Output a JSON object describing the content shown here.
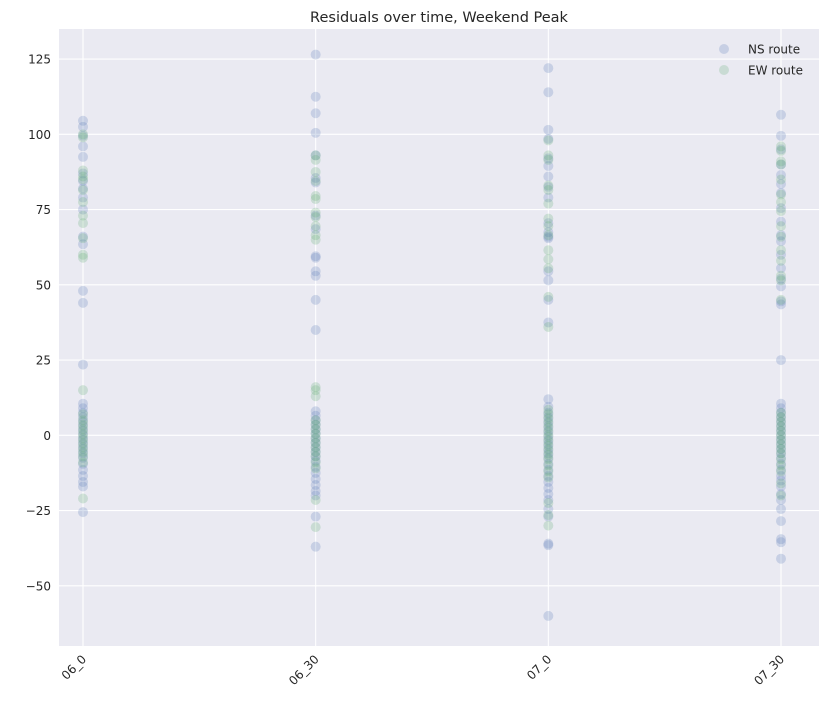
{
  "chart_data": {
    "type": "scatter",
    "title": "Residuals over time, Weekend Peak",
    "xlabel": "",
    "ylabel": "",
    "categories": [
      "06_0",
      "06_30",
      "07_0",
      "07_30"
    ],
    "ylim": [
      -70,
      135
    ],
    "yticks": [
      -50,
      -25,
      0,
      25,
      50,
      75,
      100,
      125
    ],
    "ytick_labels": [
      "−50",
      "−25",
      "0",
      "25",
      "50",
      "75",
      "100",
      "125"
    ],
    "grid": true,
    "legend_position": "top-right",
    "series": [
      {
        "name": "NS route",
        "color": "#4C72B0",
        "points": [
          [
            "06_0",
            104.5
          ],
          [
            "06_0",
            102.5
          ],
          [
            "06_0",
            99.5
          ],
          [
            "06_0",
            96
          ],
          [
            "06_0",
            92.5
          ],
          [
            "06_0",
            87
          ],
          [
            "06_0",
            84.5
          ],
          [
            "06_0",
            82
          ],
          [
            "06_0",
            79
          ],
          [
            "06_0",
            75
          ],
          [
            "06_0",
            66
          ],
          [
            "06_0",
            63.5
          ],
          [
            "06_0",
            48
          ],
          [
            "06_0",
            44
          ],
          [
            "06_0",
            23.5
          ],
          [
            "06_0",
            10.5
          ],
          [
            "06_0",
            9
          ],
          [
            "06_0",
            7.5
          ],
          [
            "06_0",
            6
          ],
          [
            "06_0",
            4.5
          ],
          [
            "06_0",
            3
          ],
          [
            "06_0",
            1.5
          ],
          [
            "06_0",
            0
          ],
          [
            "06_0",
            -1.5
          ],
          [
            "06_0",
            -3
          ],
          [
            "06_0",
            -4.5
          ],
          [
            "06_0",
            -6
          ],
          [
            "06_0",
            -7.5
          ],
          [
            "06_0",
            -9.5
          ],
          [
            "06_0",
            -11.5
          ],
          [
            "06_0",
            -13.5
          ],
          [
            "06_0",
            -15.5
          ],
          [
            "06_0",
            -17
          ],
          [
            "06_0",
            -25.5
          ],
          [
            "06_30",
            126.5
          ],
          [
            "06_30",
            112.5
          ],
          [
            "06_30",
            107
          ],
          [
            "06_30",
            100.5
          ],
          [
            "06_30",
            93
          ],
          [
            "06_30",
            85.5
          ],
          [
            "06_30",
            84
          ],
          [
            "06_30",
            73
          ],
          [
            "06_30",
            68.5
          ],
          [
            "06_30",
            59.5
          ],
          [
            "06_30",
            59
          ],
          [
            "06_30",
            54.5
          ],
          [
            "06_30",
            53
          ],
          [
            "06_30",
            45
          ],
          [
            "06_30",
            35
          ],
          [
            "06_30",
            8
          ],
          [
            "06_30",
            6.5
          ],
          [
            "06_30",
            5
          ],
          [
            "06_30",
            3.5
          ],
          [
            "06_30",
            2
          ],
          [
            "06_30",
            0.5
          ],
          [
            "06_30",
            -1
          ],
          [
            "06_30",
            -2.5
          ],
          [
            "06_30",
            -4
          ],
          [
            "06_30",
            -5.5
          ],
          [
            "06_30",
            -7
          ],
          [
            "06_30",
            -8.5
          ],
          [
            "06_30",
            -10.5
          ],
          [
            "06_30",
            -12.5
          ],
          [
            "06_30",
            -14.5
          ],
          [
            "06_30",
            -16.5
          ],
          [
            "06_30",
            -18.5
          ],
          [
            "06_30",
            -20
          ],
          [
            "06_30",
            -27
          ],
          [
            "06_30",
            -37
          ],
          [
            "07_0",
            122
          ],
          [
            "07_0",
            114
          ],
          [
            "07_0",
            101.5
          ],
          [
            "07_0",
            98.5
          ],
          [
            "07_0",
            92
          ],
          [
            "07_0",
            89.5
          ],
          [
            "07_0",
            86
          ],
          [
            "07_0",
            82.5
          ],
          [
            "07_0",
            79
          ],
          [
            "07_0",
            70.5
          ],
          [
            "07_0",
            67.5
          ],
          [
            "07_0",
            66
          ],
          [
            "07_0",
            65.5
          ],
          [
            "07_0",
            54.5
          ],
          [
            "07_0",
            51.5
          ],
          [
            "07_0",
            45
          ],
          [
            "07_0",
            37.5
          ],
          [
            "07_0",
            12
          ],
          [
            "07_0",
            9.5
          ],
          [
            "07_0",
            7.5
          ],
          [
            "07_0",
            6
          ],
          [
            "07_0",
            4.5
          ],
          [
            "07_0",
            3
          ],
          [
            "07_0",
            1.5
          ],
          [
            "07_0",
            0
          ],
          [
            "07_0",
            -1.5
          ],
          [
            "07_0",
            -3
          ],
          [
            "07_0",
            -4.5
          ],
          [
            "07_0",
            -6
          ],
          [
            "07_0",
            -7.5
          ],
          [
            "07_0",
            -9.5
          ],
          [
            "07_0",
            -11.5
          ],
          [
            "07_0",
            -13.5
          ],
          [
            "07_0",
            -15.5
          ],
          [
            "07_0",
            -17.5
          ],
          [
            "07_0",
            -19.5
          ],
          [
            "07_0",
            -21.5
          ],
          [
            "07_0",
            -24.5
          ],
          [
            "07_0",
            -27
          ],
          [
            "07_0",
            -36
          ],
          [
            "07_0",
            -36.5
          ],
          [
            "07_0",
            -60
          ],
          [
            "07_30",
            106.5
          ],
          [
            "07_30",
            99.5
          ],
          [
            "07_30",
            95
          ],
          [
            "07_30",
            90
          ],
          [
            "07_30",
            86.5
          ],
          [
            "07_30",
            83.5
          ],
          [
            "07_30",
            80.5
          ],
          [
            "07_30",
            75.5
          ],
          [
            "07_30",
            71
          ],
          [
            "07_30",
            66.5
          ],
          [
            "07_30",
            64.5
          ],
          [
            "07_30",
            60
          ],
          [
            "07_30",
            55.5
          ],
          [
            "07_30",
            52
          ],
          [
            "07_30",
            49.5
          ],
          [
            "07_30",
            44.5
          ],
          [
            "07_30",
            43.5
          ],
          [
            "07_30",
            25
          ],
          [
            "07_30",
            10.5
          ],
          [
            "07_30",
            9
          ],
          [
            "07_30",
            7.5
          ],
          [
            "07_30",
            6
          ],
          [
            "07_30",
            4.5
          ],
          [
            "07_30",
            3
          ],
          [
            "07_30",
            1.5
          ],
          [
            "07_30",
            0
          ],
          [
            "07_30",
            -1.5
          ],
          [
            "07_30",
            -3
          ],
          [
            "07_30",
            -4.5
          ],
          [
            "07_30",
            -6
          ],
          [
            "07_30",
            -7.5
          ],
          [
            "07_30",
            -9.5
          ],
          [
            "07_30",
            -11.5
          ],
          [
            "07_30",
            -13.5
          ],
          [
            "07_30",
            -15
          ],
          [
            "07_30",
            -17
          ],
          [
            "07_30",
            -19.5
          ],
          [
            "07_30",
            -21.5
          ],
          [
            "07_30",
            -24.5
          ],
          [
            "07_30",
            -28.5
          ],
          [
            "07_30",
            -34.5
          ],
          [
            "07_30",
            -35.5
          ],
          [
            "07_30",
            -41
          ]
        ]
      },
      {
        "name": "EW route",
        "color": "#55A868",
        "points": [
          [
            "06_0",
            100
          ],
          [
            "06_0",
            99
          ],
          [
            "06_0",
            88
          ],
          [
            "06_0",
            86
          ],
          [
            "06_0",
            85
          ],
          [
            "06_0",
            81.5
          ],
          [
            "06_0",
            77.5
          ],
          [
            "06_0",
            73
          ],
          [
            "06_0",
            70.5
          ],
          [
            "06_0",
            65.5
          ],
          [
            "06_0",
            60
          ],
          [
            "06_0",
            59
          ],
          [
            "06_0",
            15
          ],
          [
            "06_0",
            7
          ],
          [
            "06_0",
            5
          ],
          [
            "06_0",
            3.5
          ],
          [
            "06_0",
            2
          ],
          [
            "06_0",
            0.5
          ],
          [
            "06_0",
            -1
          ],
          [
            "06_0",
            -2.5
          ],
          [
            "06_0",
            -4
          ],
          [
            "06_0",
            -5.5
          ],
          [
            "06_0",
            -7
          ],
          [
            "06_0",
            -9
          ],
          [
            "06_0",
            -21
          ],
          [
            "06_30",
            93
          ],
          [
            "06_30",
            91.5
          ],
          [
            "06_30",
            87.5
          ],
          [
            "06_30",
            84.5
          ],
          [
            "06_30",
            79.5
          ],
          [
            "06_30",
            78.5
          ],
          [
            "06_30",
            74
          ],
          [
            "06_30",
            72.5
          ],
          [
            "06_30",
            69.5
          ],
          [
            "06_30",
            66.5
          ],
          [
            "06_30",
            65
          ],
          [
            "06_30",
            16
          ],
          [
            "06_30",
            15
          ],
          [
            "06_30",
            13
          ],
          [
            "06_30",
            5
          ],
          [
            "06_30",
            3.5
          ],
          [
            "06_30",
            2
          ],
          [
            "06_30",
            0.5
          ],
          [
            "06_30",
            -1
          ],
          [
            "06_30",
            -2.5
          ],
          [
            "06_30",
            -4
          ],
          [
            "06_30",
            -5.5
          ],
          [
            "06_30",
            -7
          ],
          [
            "06_30",
            -9
          ],
          [
            "06_30",
            -11
          ],
          [
            "06_30",
            -21.5
          ],
          [
            "06_30",
            -30.5
          ],
          [
            "07_0",
            98
          ],
          [
            "07_0",
            93
          ],
          [
            "07_0",
            91.5
          ],
          [
            "07_0",
            83
          ],
          [
            "07_0",
            81.5
          ],
          [
            "07_0",
            77
          ],
          [
            "07_0",
            72
          ],
          [
            "07_0",
            69.5
          ],
          [
            "07_0",
            66.5
          ],
          [
            "07_0",
            61.5
          ],
          [
            "07_0",
            58.5
          ],
          [
            "07_0",
            55.5
          ],
          [
            "07_0",
            46
          ],
          [
            "07_0",
            36
          ],
          [
            "07_0",
            8.5
          ],
          [
            "07_0",
            7
          ],
          [
            "07_0",
            5.5
          ],
          [
            "07_0",
            4
          ],
          [
            "07_0",
            2.5
          ],
          [
            "07_0",
            1
          ],
          [
            "07_0",
            -0.5
          ],
          [
            "07_0",
            -2
          ],
          [
            "07_0",
            -3.5
          ],
          [
            "07_0",
            -5
          ],
          [
            "07_0",
            -6.5
          ],
          [
            "07_0",
            -8
          ],
          [
            "07_0",
            -10
          ],
          [
            "07_0",
            -12
          ],
          [
            "07_0",
            -14
          ],
          [
            "07_0",
            -22.5
          ],
          [
            "07_0",
            -26.5
          ],
          [
            "07_0",
            -30
          ],
          [
            "07_30",
            96
          ],
          [
            "07_30",
            94.5
          ],
          [
            "07_30",
            91
          ],
          [
            "07_30",
            90
          ],
          [
            "07_30",
            85
          ],
          [
            "07_30",
            80
          ],
          [
            "07_30",
            77.5
          ],
          [
            "07_30",
            74.5
          ],
          [
            "07_30",
            69.5
          ],
          [
            "07_30",
            66
          ],
          [
            "07_30",
            61.5
          ],
          [
            "07_30",
            58
          ],
          [
            "07_30",
            53
          ],
          [
            "07_30",
            51.5
          ],
          [
            "07_30",
            45
          ],
          [
            "07_30",
            7.5
          ],
          [
            "07_30",
            6
          ],
          [
            "07_30",
            4.5
          ],
          [
            "07_30",
            3
          ],
          [
            "07_30",
            1.5
          ],
          [
            "07_30",
            0
          ],
          [
            "07_30",
            -1.5
          ],
          [
            "07_30",
            -3
          ],
          [
            "07_30",
            -4.5
          ],
          [
            "07_30",
            -6
          ],
          [
            "07_30",
            -8
          ],
          [
            "07_30",
            -10
          ],
          [
            "07_30",
            -12
          ],
          [
            "07_30",
            -16
          ],
          [
            "07_30",
            -20
          ]
        ]
      }
    ]
  }
}
